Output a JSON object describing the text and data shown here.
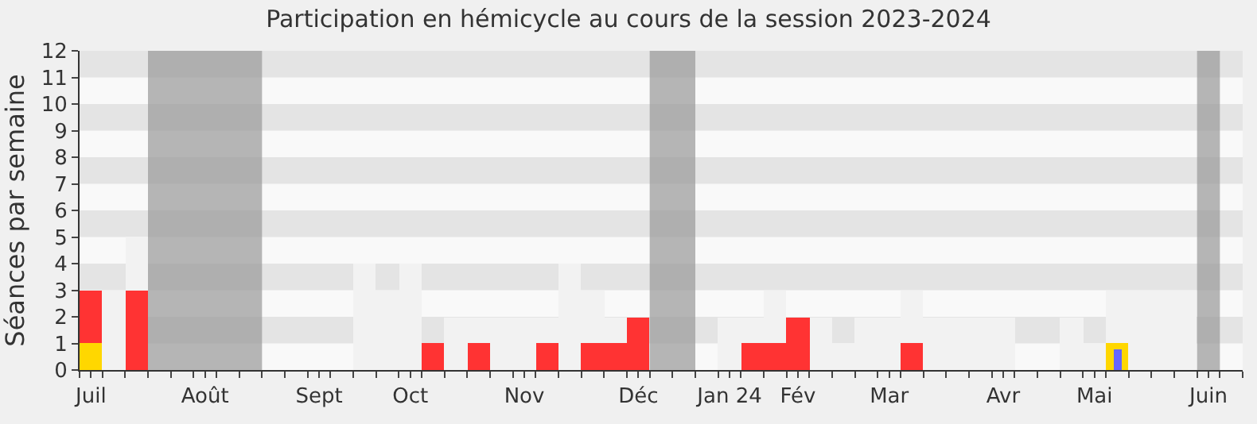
{
  "chart_data": {
    "type": "bar",
    "title": "Participation en hémicycle au cours de la session 2023-2024",
    "ylabel": "Séances par semaine",
    "categories": [
      "Juil",
      null,
      null,
      null,
      null,
      "Août",
      null,
      null,
      null,
      null,
      "Sept",
      null,
      null,
      null,
      "Oct",
      null,
      null,
      null,
      null,
      "Nov",
      null,
      null,
      null,
      null,
      "Déc",
      null,
      null,
      null,
      "Jan 24",
      null,
      null,
      "Fév",
      null,
      null,
      null,
      "Mar",
      null,
      null,
      null,
      null,
      "Avr",
      null,
      null,
      null,
      "Mai",
      null,
      null,
      null,
      null,
      "Juin",
      null
    ],
    "series": [
      {
        "color": "#f2f2f2",
        "values": [
          null,
          3,
          5,
          null,
          null,
          null,
          null,
          null,
          null,
          null,
          null,
          null,
          4,
          3,
          4,
          null,
          2,
          2,
          2,
          2,
          2,
          4,
          3,
          2,
          null,
          null,
          null,
          null,
          2,
          2,
          3,
          null,
          2,
          1,
          2,
          2,
          3,
          2,
          2,
          2,
          2,
          null,
          null,
          2,
          1,
          3,
          3,
          3,
          3,
          null,
          null
        ]
      },
      {
        "color": "#ff3333",
        "values": [
          3,
          null,
          3,
          null,
          null,
          null,
          null,
          null,
          null,
          null,
          null,
          null,
          null,
          null,
          null,
          1,
          null,
          1,
          null,
          null,
          1,
          null,
          1,
          1,
          2,
          null,
          null,
          null,
          null,
          1,
          1,
          2,
          null,
          null,
          null,
          null,
          1,
          null,
          null,
          null,
          null,
          null,
          null,
          null,
          null,
          null,
          null,
          null,
          null,
          null,
          null
        ]
      },
      {
        "color": "#ffd700",
        "values": [
          1,
          null,
          null,
          null,
          null,
          null,
          null,
          null,
          null,
          null,
          null,
          null,
          null,
          null,
          null,
          null,
          null,
          null,
          null,
          null,
          null,
          null,
          null,
          null,
          null,
          null,
          null,
          null,
          null,
          null,
          null,
          null,
          null,
          null,
          null,
          null,
          null,
          null,
          null,
          null,
          null,
          null,
          null,
          null,
          null,
          1,
          null,
          null,
          null,
          null,
          null
        ]
      },
      {
        "color": "#6666ff",
        "values": [
          null,
          null,
          null,
          null,
          null,
          null,
          null,
          null,
          null,
          null,
          null,
          null,
          null,
          null,
          null,
          null,
          null,
          null,
          null,
          null,
          null,
          null,
          null,
          null,
          null,
          null,
          null,
          null,
          null,
          null,
          null,
          null,
          null,
          null,
          null,
          null,
          null,
          null,
          null,
          null,
          null,
          null,
          null,
          null,
          null,
          0.8,
          null,
          null,
          null,
          null,
          null
        ]
      }
    ],
    "ylim": [
      0,
      12
    ],
    "yticks": [
      0,
      1,
      2,
      3,
      4,
      5,
      6,
      7,
      8,
      9,
      10,
      11,
      12
    ],
    "bands": [
      {
        "axis": "y",
        "from": 1,
        "to": 2,
        "color": "#dcdcdc"
      },
      {
        "axis": "y",
        "from": 3,
        "to": 4,
        "color": "#dcdcdc"
      },
      {
        "axis": "y",
        "from": 5,
        "to": 6,
        "color": "#dcdcdc"
      },
      {
        "axis": "y",
        "from": 7,
        "to": 8,
        "color": "#dcdcdc"
      },
      {
        "axis": "y",
        "from": 9,
        "to": 10,
        "color": "#dcdcdc"
      },
      {
        "axis": "y",
        "from": 11,
        "to": 12,
        "color": "#dcdcdc"
      }
    ],
    "grid": false
  }
}
